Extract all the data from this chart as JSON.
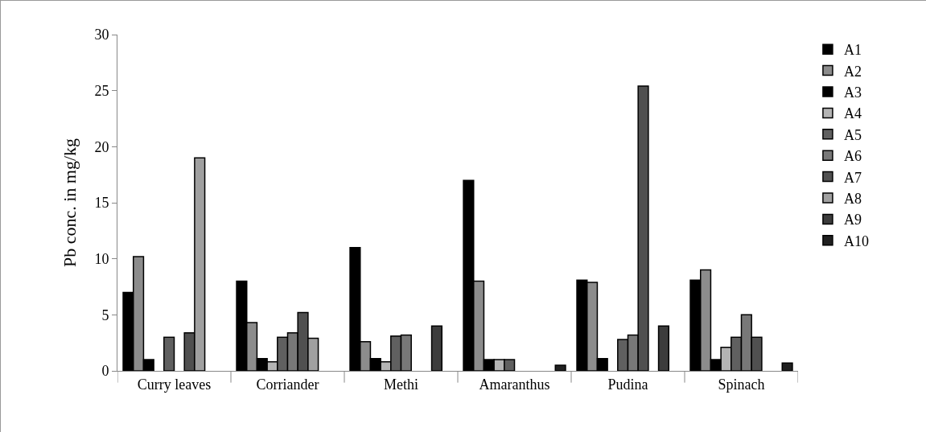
{
  "chart_data": {
    "type": "bar",
    "ylabel": "Pb conc. in mg/kg",
    "categories": [
      "Curry leaves",
      "Corriander",
      "Methi",
      "Amaranthus",
      "Pudina",
      "Spinach"
    ],
    "series": [
      {
        "name": "A1",
        "color": "#000000",
        "values": [
          7,
          8,
          11,
          17,
          8.1,
          8.1
        ]
      },
      {
        "name": "A2",
        "color": "#8c8c8c",
        "values": [
          10.2,
          4.3,
          2.6,
          8,
          7.9,
          9
        ]
      },
      {
        "name": "A3",
        "color": "#000000",
        "values": [
          1,
          1.1,
          1.1,
          1,
          1.1,
          1
        ]
      },
      {
        "name": "A4",
        "color": "#b4b4b4",
        "values": [
          null,
          0.8,
          0.8,
          1,
          null,
          2.1
        ]
      },
      {
        "name": "A5",
        "color": "#606060",
        "values": [
          3,
          3,
          3.1,
          1,
          2.8,
          3
        ]
      },
      {
        "name": "A6",
        "color": "#787878",
        "values": [
          null,
          3.4,
          3.2,
          null,
          3.2,
          5
        ]
      },
      {
        "name": "A7",
        "color": "#505050",
        "values": [
          3.4,
          5.2,
          null,
          null,
          25.4,
          3
        ]
      },
      {
        "name": "A8",
        "color": "#a0a0a0",
        "values": [
          19,
          2.9,
          null,
          null,
          null,
          null
        ]
      },
      {
        "name": "A9",
        "color": "#3c3c3c",
        "values": [
          null,
          null,
          4,
          null,
          4,
          null
        ]
      },
      {
        "name": "A10",
        "color": "#202020",
        "values": [
          null,
          null,
          null,
          0.5,
          null,
          0.7
        ]
      }
    ],
    "ylim": [
      0,
      30
    ],
    "yticks": [
      0,
      5,
      10,
      15,
      20,
      25,
      30
    ],
    "grid": false,
    "legend": "right"
  }
}
